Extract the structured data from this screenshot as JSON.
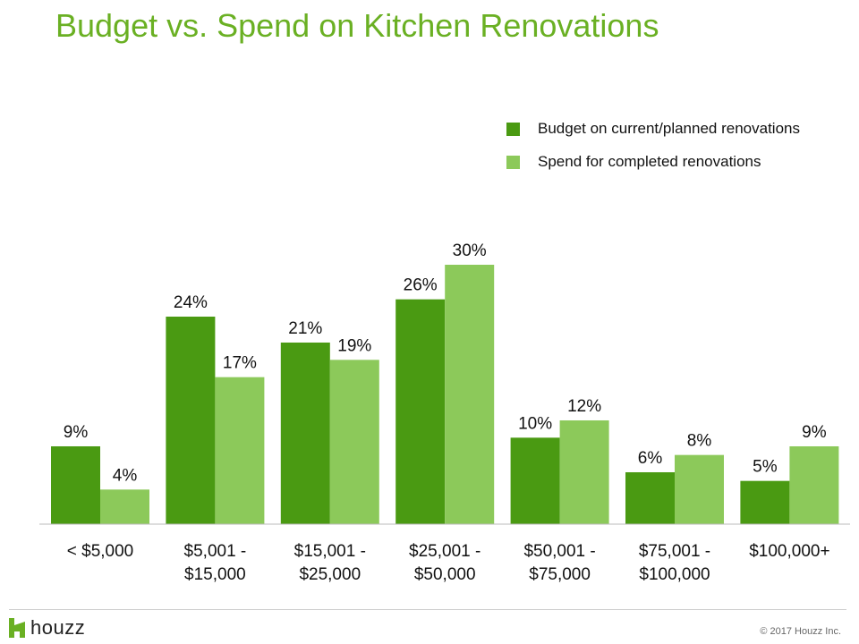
{
  "colors": {
    "title": "#6ab023",
    "budget": "#4a9a12",
    "spend": "#8cc95a",
    "text": "#111111",
    "axis": "#bbbbbb",
    "footer_text": "#666666"
  },
  "footer": {
    "logo_text": "houzz",
    "logo_icon": "houzz-logo-icon",
    "copyright": "© 2017 Houzz Inc."
  },
  "chart_data": {
    "type": "bar",
    "title": "Budget vs. Spend on Kitchen Renovations",
    "xlabel": "",
    "ylabel": "",
    "ylim": [
      0,
      30
    ],
    "grid": false,
    "legend_position": "top-right",
    "categories": [
      [
        "< $5,000"
      ],
      [
        "$5,001 -",
        "$15,000"
      ],
      [
        "$15,001 -",
        "$25,000"
      ],
      [
        "$25,001 -",
        "$50,000"
      ],
      [
        "$50,001 -",
        "$75,000"
      ],
      [
        "$75,001 -",
        "$100,000"
      ],
      [
        "$100,000+"
      ]
    ],
    "series": [
      {
        "name": "Budget on current/planned renovations",
        "values": [
          9,
          24,
          21,
          26,
          10,
          6,
          5
        ],
        "labels": [
          "9%",
          "24%",
          "21%",
          "26%",
          "10%",
          "6%",
          "5%"
        ]
      },
      {
        "name": "Spend for completed renovations",
        "values": [
          4,
          17,
          19,
          30,
          12,
          8,
          9
        ],
        "labels": [
          "4%",
          "17%",
          "19%",
          "30%",
          "12%",
          "8%",
          "9%"
        ]
      }
    ]
  }
}
